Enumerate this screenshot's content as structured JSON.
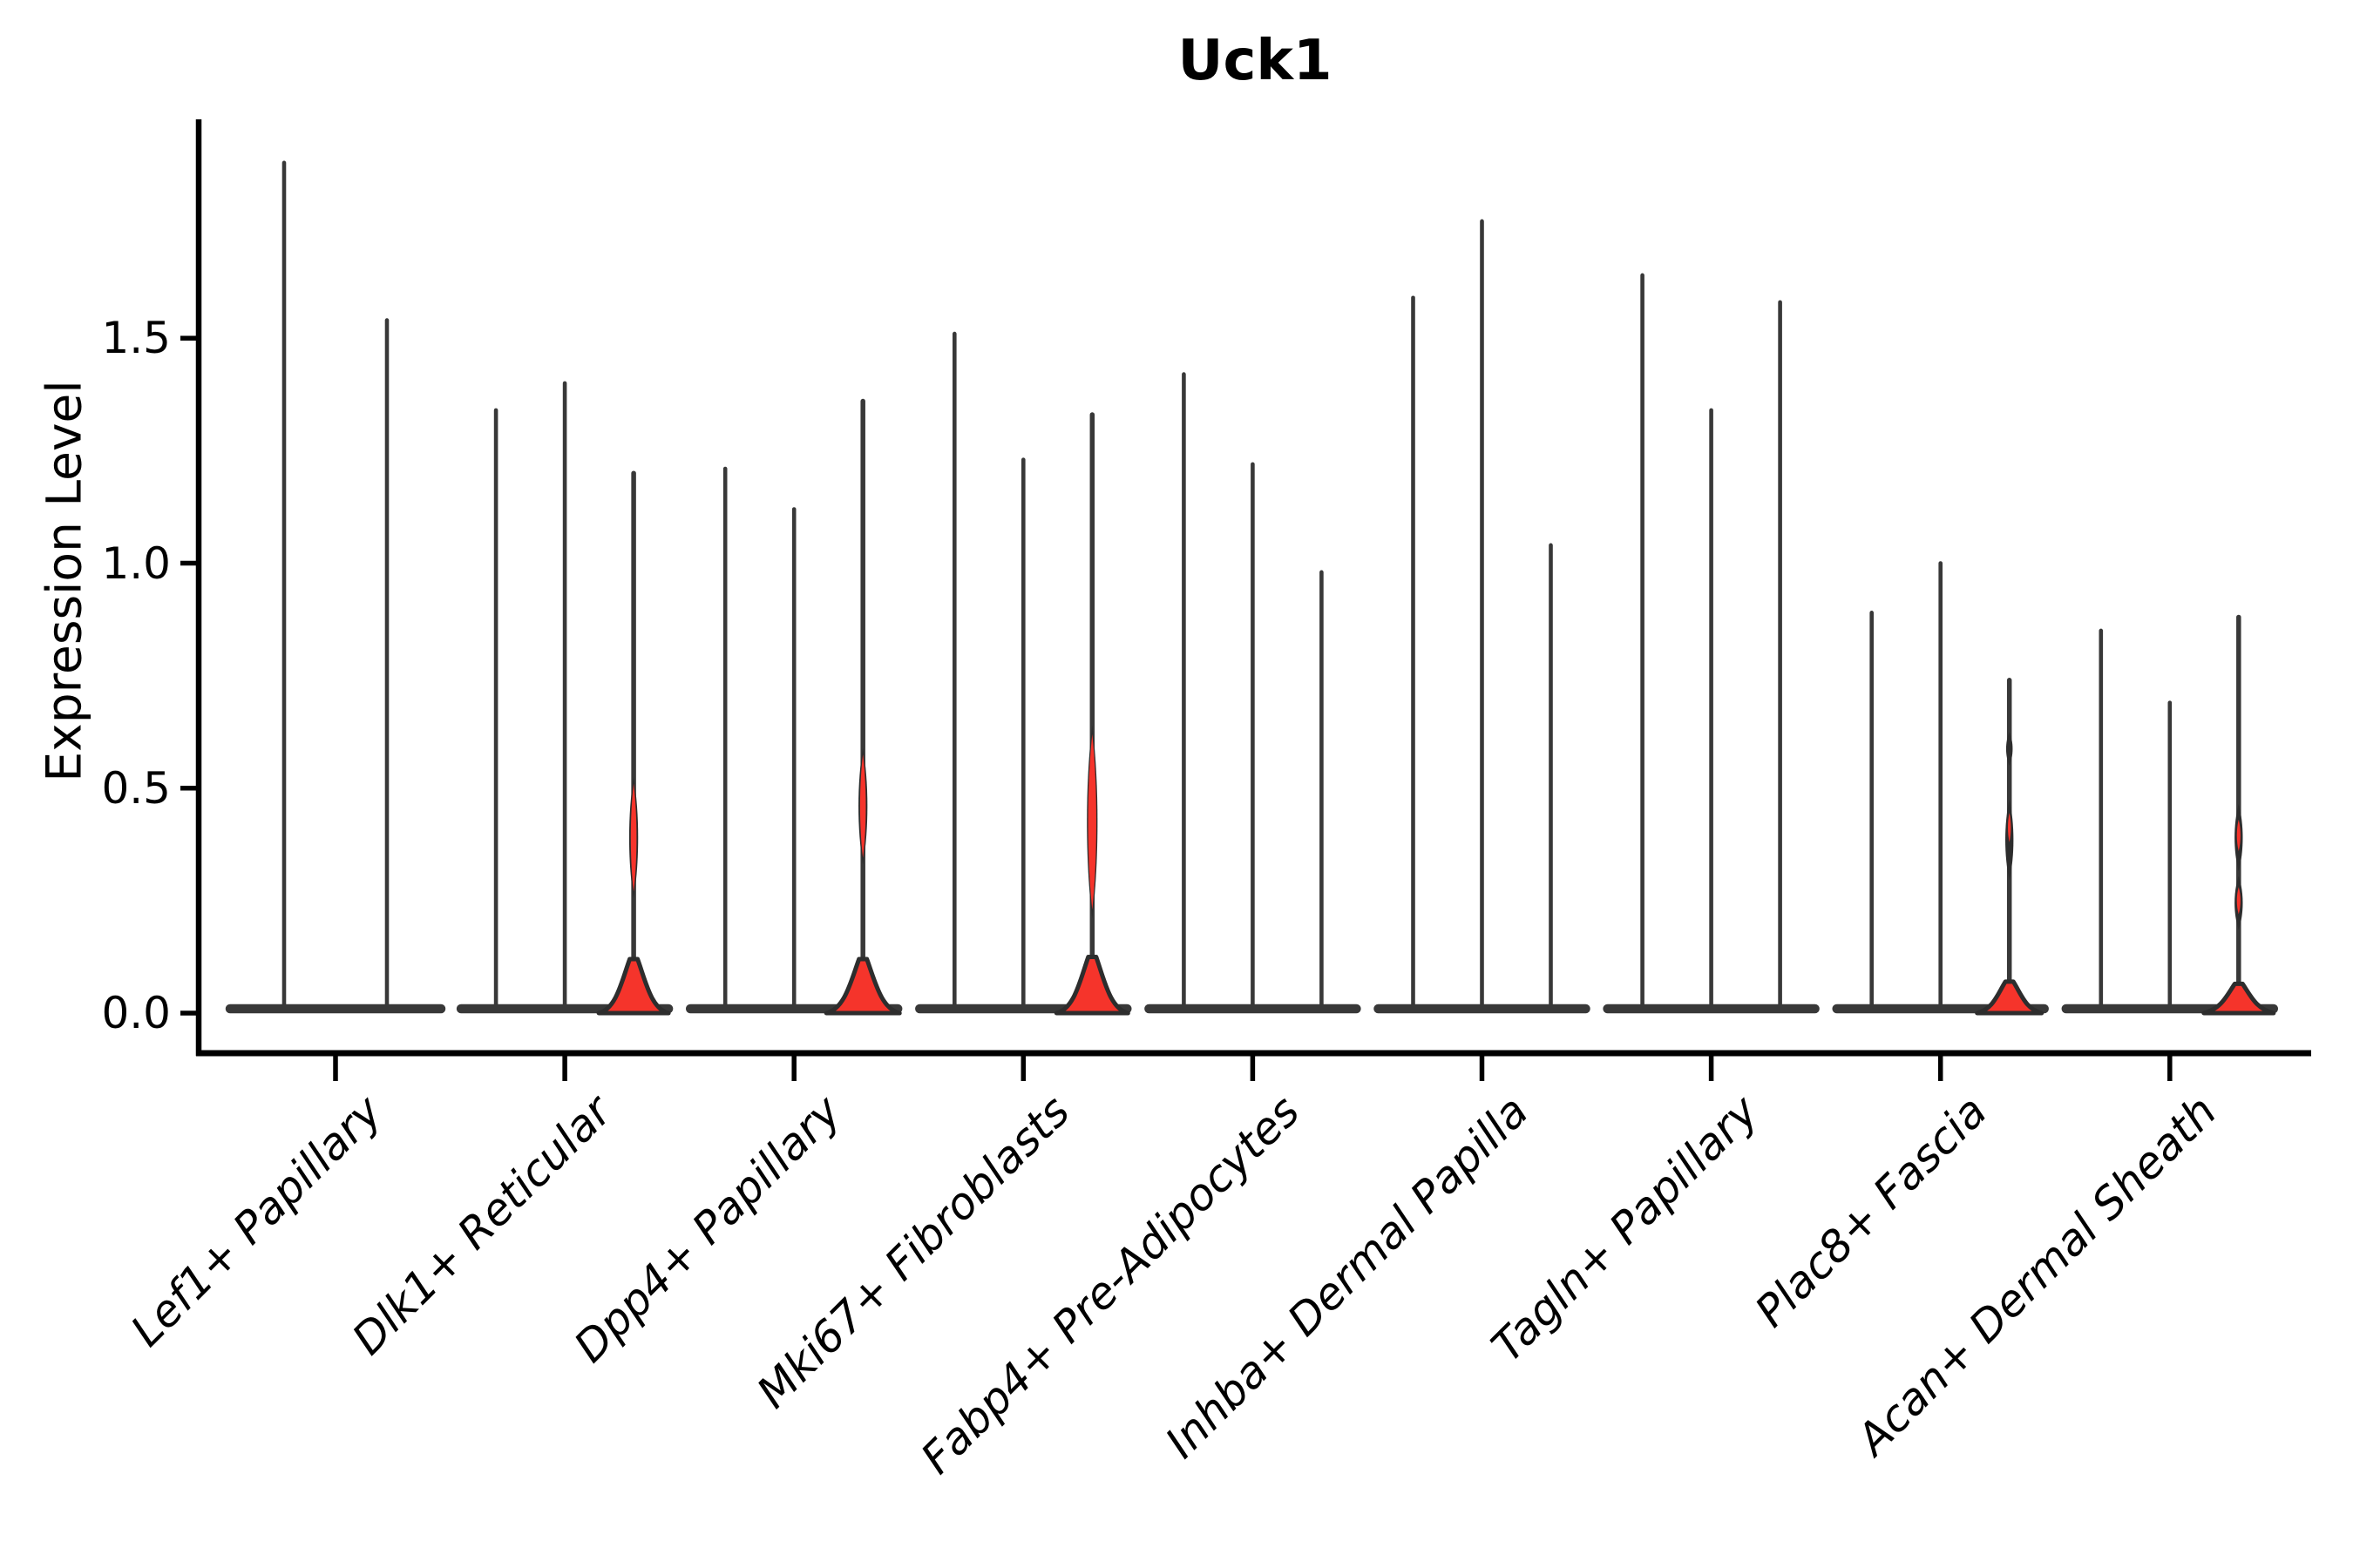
{
  "chart_data": {
    "type": "violin",
    "title": "Uck1",
    "ylabel": "Expression Level",
    "xlabel": "",
    "grid": false,
    "legend": "none",
    "ylim": [
      -0.09,
      1.98
    ],
    "yticks": [
      {
        "label": "0.0",
        "value": 0.0
      },
      {
        "label": "0.5",
        "value": 0.5
      },
      {
        "label": "1.0",
        "value": 1.0
      },
      {
        "label": "1.5",
        "value": 1.5
      }
    ],
    "colors": {
      "violin_fill": "#f5342b",
      "violin_edge": "#2d2d2d",
      "stem": "#383838",
      "axis": "#000000",
      "text": "#000000"
    },
    "groups": [
      {
        "label": "Lef1+ Papillary",
        "violins": [
          {
            "max": 1.89,
            "highlighted": false
          },
          {
            "max": 1.54,
            "highlighted": false
          }
        ]
      },
      {
        "label": "Dlk1+ Reticular",
        "violins": [
          {
            "max": 1.34,
            "highlighted": false
          },
          {
            "max": 1.4,
            "highlighted": false
          },
          {
            "max": 1.2,
            "highlighted": true,
            "belly": {
              "top": 0.12,
              "halfwidth": 40
            },
            "bulges": [
              {
                "from": 0.255,
                "to": 0.525,
                "halfwidth": 5.5,
                "red_from": 0.27,
                "red_to": 0.51,
                "red_halfwidth": 3.5
              }
            ]
          }
        ]
      },
      {
        "label": "Dpp4+ Papillary",
        "violins": [
          {
            "max": 1.21,
            "highlighted": false
          },
          {
            "max": 1.12,
            "highlighted": false
          },
          {
            "max": 1.36,
            "highlighted": true,
            "belly": {
              "top": 0.12,
              "halfwidth": 42
            },
            "bulges": [
              {
                "from": 0.33,
                "to": 0.59,
                "halfwidth": 5.5,
                "red_from": 0.345,
                "red_to": 0.575,
                "red_halfwidth": 3.5
              }
            ]
          }
        ]
      },
      {
        "label": "Mki67+ Fibroblasts",
        "violins": [
          {
            "max": 1.51,
            "highlighted": false
          },
          {
            "max": 1.23,
            "highlighted": false
          },
          {
            "max": 1.33,
            "highlighted": true,
            "belly": {
              "top": 0.125,
              "halfwidth": 41
            },
            "bulges": [
              {
                "from": 0.21,
                "to": 0.64,
                "halfwidth": 6.5,
                "red_from": 0.23,
                "red_to": 0.62,
                "red_halfwidth": 5
              }
            ]
          }
        ]
      },
      {
        "label": "Fabp4+ Pre-Adipocytes",
        "violins": [
          {
            "max": 1.42,
            "highlighted": false
          },
          {
            "max": 1.22,
            "highlighted": false
          },
          {
            "max": 0.98,
            "highlighted": false
          }
        ]
      },
      {
        "label": "Inhba+ Dermal Papilla",
        "violins": [
          {
            "max": 1.59,
            "highlighted": false
          },
          {
            "max": 1.76,
            "highlighted": false
          },
          {
            "max": 1.04,
            "highlighted": false
          }
        ]
      },
      {
        "label": "Tagln+ Papillary",
        "violins": [
          {
            "max": 1.64,
            "highlighted": false
          },
          {
            "max": 1.34,
            "highlighted": false
          },
          {
            "max": 1.58,
            "highlighted": false
          }
        ]
      },
      {
        "label": "Plac8+ Fascia",
        "violins": [
          {
            "max": 0.89,
            "highlighted": false
          },
          {
            "max": 1.0,
            "highlighted": false
          },
          {
            "max": 0.74,
            "highlighted": true,
            "belly": {
              "top": 0.07,
              "halfwidth": 37
            },
            "bulges": [
              {
                "from": 0.295,
                "to": 0.475,
                "halfwidth": 5,
                "red_from": 0.38,
                "red_to": 0.445,
                "red_halfwidth": 1.8
              },
              {
                "from": 0.55,
                "to": 0.625,
                "halfwidth": 4
              }
            ]
          }
        ]
      },
      {
        "label": "Acan+ Dermal Sheath",
        "violins": [
          {
            "max": 0.85,
            "highlighted": false
          },
          {
            "max": 0.69,
            "highlighted": false
          },
          {
            "max": 0.88,
            "highlighted": true,
            "belly": {
              "top": 0.065,
              "halfwidth": 40
            },
            "bulges": [
              {
                "from": 0.315,
                "to": 0.465,
                "halfwidth": 5,
                "red_from": 0.36,
                "red_to": 0.43,
                "red_halfwidth": 2.2
              },
              {
                "from": 0.185,
                "to": 0.305,
                "halfwidth": 5,
                "red_from": 0.22,
                "red_to": 0.28,
                "red_halfwidth": 2.2
              }
            ]
          }
        ]
      }
    ]
  }
}
